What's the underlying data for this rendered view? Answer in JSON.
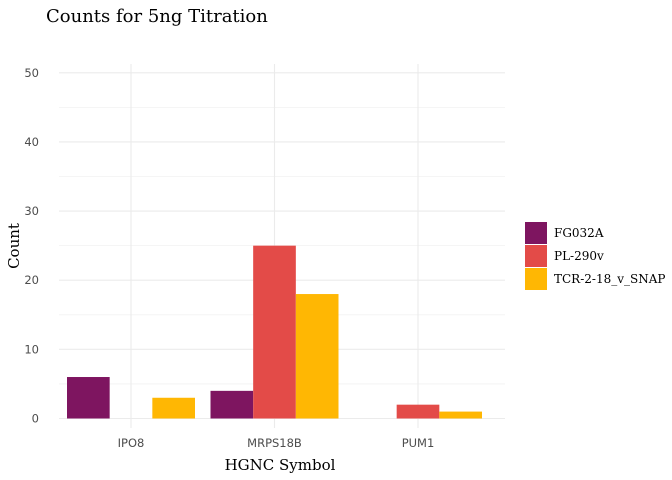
{
  "chart_data": {
    "type": "bar",
    "title": "Counts for 5ng Titration",
    "xlabel": "HGNC Symbol",
    "ylabel": "Count",
    "categories": [
      "IPO8",
      "MRPS18B",
      "PUM1"
    ],
    "series": [
      {
        "name": "FG032A",
        "color": "#7E1560",
        "values": [
          6,
          4,
          0
        ]
      },
      {
        "name": "PL-290v",
        "color": "#E34B48",
        "values": [
          0,
          25,
          2
        ]
      },
      {
        "name": "TCR-2-18_v_SNAP",
        "color": "#FFB703",
        "values": [
          3,
          18,
          1
        ]
      }
    ],
    "ylim": [
      0,
      50
    ],
    "yticks": [
      0,
      10,
      20,
      30,
      40,
      50
    ],
    "grid": true,
    "legend_position": "right"
  }
}
